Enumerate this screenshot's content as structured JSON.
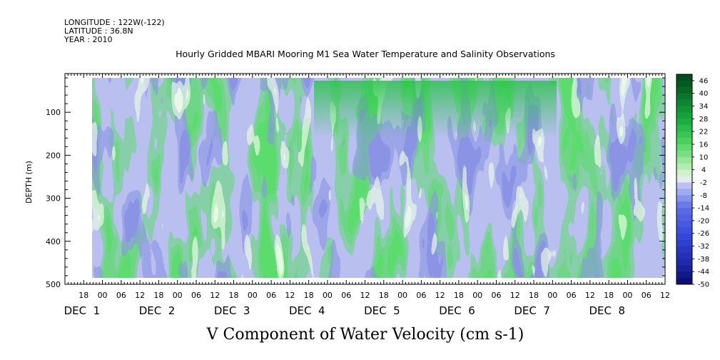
{
  "meta": {
    "longitude": "LONGITUDE : 122W(-122)",
    "latitude": "LATITUDE : 36.8N",
    "year": "YEAR : 2010"
  },
  "chart_data": {
    "type": "heatmap",
    "title": "Hourly Gridded MBARI Mooring M1 Sea Water Temperature and Salinity Observations",
    "xlabel": "V Component of Water Velocity (cm s-1)",
    "ylabel": "DEPTH (m)",
    "ylim": [
      500,
      10
    ],
    "yticks": [
      100,
      200,
      300,
      400,
      500
    ],
    "data_depth_range": [
      20,
      485
    ],
    "xlim_hours": [
      -12,
      180
    ],
    "xtick_labels": [
      "18",
      "00",
      "06",
      "12",
      "18",
      "00",
      "06",
      "12",
      "18",
      "00",
      "06",
      "12",
      "18",
      "00",
      "06",
      "12",
      "18",
      "00",
      "06",
      "12",
      "18",
      "00",
      "06",
      "12",
      "18",
      "00",
      "06",
      "12",
      "18",
      "00",
      "06",
      "12"
    ],
    "date_labels": [
      "DEC  1",
      "DEC  2",
      "DEC  3",
      "DEC  4",
      "DEC  5",
      "DEC  6",
      "DEC  7",
      "DEC  8"
    ],
    "colorbar": {
      "labels": [
        "46",
        "40",
        "34",
        "28",
        "22",
        "16",
        "10",
        "4",
        "-2",
        "-8",
        "-14",
        "-20",
        "-26",
        "-32",
        "-38",
        "-44",
        "-50"
      ],
      "levels": [
        49,
        46,
        43,
        40,
        37,
        34,
        31,
        28,
        25,
        22,
        19,
        16,
        13,
        10,
        7,
        4,
        1,
        -2,
        -5,
        -8,
        -11,
        -14,
        -17,
        -20,
        -23,
        -26,
        -29,
        -32,
        -35,
        -38,
        -41,
        -44,
        -47,
        -50
      ],
      "placement": "right"
    }
  }
}
